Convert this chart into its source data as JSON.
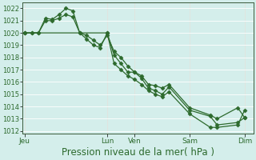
{
  "background_color": "#d4eeeb",
  "grid_major_color": "#ffffff",
  "grid_minor_color": "#c8e8e4",
  "line_color": "#2d6a2d",
  "marker": "D",
  "markersize": 2.5,
  "linewidth": 0.9,
  "xlabel": "Pression niveau de la mer( hPa )",
  "xlabel_fontsize": 8.5,
  "ylim": [
    1011.8,
    1022.5
  ],
  "yticks": [
    1012,
    1013,
    1014,
    1015,
    1016,
    1017,
    1018,
    1019,
    1020,
    1021,
    1022
  ],
  "ytick_fontsize": 6,
  "xtick_fontsize": 6.5,
  "xtick_labels": [
    "Jeu",
    "Lun",
    "Ven",
    "Sam",
    "Dim"
  ],
  "xtick_positions": [
    0,
    72,
    96,
    144,
    192
  ],
  "vline_positions": [
    0,
    72,
    96,
    144,
    192
  ],
  "xlim": [
    -2,
    200
  ],
  "series1_x": [
    0,
    6,
    12,
    18,
    24,
    30,
    36,
    42,
    48,
    54,
    60,
    66,
    72,
    78,
    84,
    90,
    96,
    102,
    108,
    114,
    120,
    126,
    144,
    162,
    168,
    186,
    192
  ],
  "series1_y": [
    1020.0,
    1020.0,
    1020.0,
    1021.2,
    1021.1,
    1021.5,
    1022.0,
    1021.8,
    1020.0,
    1019.8,
    1019.4,
    1019.0,
    1019.8,
    1018.5,
    1018.0,
    1017.3,
    1016.8,
    1016.5,
    1015.8,
    1015.7,
    1015.5,
    1015.8,
    1013.9,
    1013.3,
    1013.0,
    1013.9,
    1013.1
  ],
  "series2_x": [
    0,
    6,
    12,
    18,
    24,
    30,
    36,
    42,
    48,
    54,
    60,
    66,
    72,
    78,
    84,
    90,
    96,
    102,
    108,
    114,
    120,
    126,
    144,
    162,
    168,
    186,
    192
  ],
  "series2_y": [
    1020.0,
    1020.0,
    1020.0,
    1021.0,
    1021.0,
    1021.2,
    1021.5,
    1021.3,
    1020.0,
    1019.5,
    1019.0,
    1018.8,
    1020.0,
    1018.2,
    1017.5,
    1016.8,
    1016.8,
    1016.3,
    1015.5,
    1015.3,
    1015.0,
    1015.6,
    1013.7,
    1013.2,
    1012.5,
    1012.7,
    1013.1
  ],
  "series3_x": [
    0,
    72,
    78,
    84,
    90,
    96,
    102,
    108,
    114,
    120,
    126,
    144,
    162,
    168,
    186,
    192
  ],
  "series3_y": [
    1020.0,
    1020.0,
    1017.5,
    1017.0,
    1016.5,
    1016.2,
    1015.8,
    1015.3,
    1015.0,
    1014.8,
    1015.2,
    1013.4,
    1012.3,
    1012.3,
    1012.5,
    1013.7
  ]
}
